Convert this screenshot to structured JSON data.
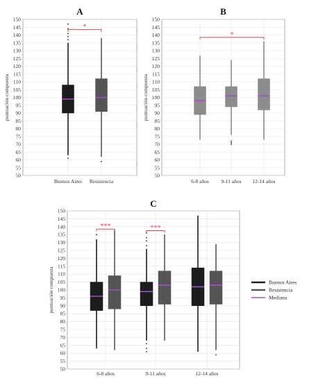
{
  "chart_data": [
    {
      "type": "boxplot",
      "panel_label": "A",
      "ylabel": "puntuación compuesta",
      "ylim": [
        50,
        150
      ],
      "yticks": [
        50,
        55,
        60,
        65,
        70,
        75,
        80,
        85,
        90,
        95,
        100,
        105,
        110,
        115,
        120,
        125,
        130,
        135,
        140,
        145,
        150
      ],
      "grid": true,
      "categories": [
        "Buenos Aires",
        "Resistencia"
      ],
      "boxes": [
        {
          "category": "Buenos Aires",
          "color": "#1c1c1c",
          "q1": 90,
          "median": 99,
          "q3": 108,
          "whisker_low": 63,
          "whisker_high": 135,
          "outliers": [
            61,
            137,
            139,
            141,
            144,
            147
          ]
        },
        {
          "category": "Resistencia",
          "color": "#555555",
          "q1": 91,
          "median": 100,
          "q3": 112,
          "whisker_low": 62,
          "whisker_high": 138,
          "outliers": [
            59
          ]
        }
      ],
      "significance": [
        {
          "from": 0,
          "to": 1,
          "y": 143.5,
          "label": "*"
        }
      ]
    },
    {
      "type": "boxplot",
      "panel_label": "B",
      "ylabel": "puntuación compuesta",
      "ylim": [
        50,
        150
      ],
      "yticks": [
        50,
        55,
        60,
        65,
        70,
        75,
        80,
        85,
        90,
        95,
        100,
        105,
        110,
        115,
        120,
        125,
        130,
        135,
        140,
        145,
        150
      ],
      "grid": true,
      "categories": [
        "6-8 años",
        "9-11 años",
        "12-14 años"
      ],
      "boxes": [
        {
          "category": "6-8 años",
          "color": "#8c8c8c",
          "q1": 89,
          "median": 98,
          "q3": 107,
          "whisker_low": 73,
          "whisker_high": 127,
          "outliers": []
        },
        {
          "category": "9-11 años",
          "color": "#8c8c8c",
          "q1": 94,
          "median": 101,
          "q3": 107,
          "whisker_low": 76,
          "whisker_high": 124,
          "outliers": [
            70,
            71,
            72
          ]
        },
        {
          "category": "12-14 años",
          "color": "#8c8c8c",
          "q1": 92,
          "median": 101,
          "q3": 112,
          "whisker_low": 73,
          "whisker_high": 136,
          "outliers": []
        }
      ],
      "significance": [
        {
          "from": 0,
          "to": 2,
          "y": 138.5,
          "label": "*"
        }
      ]
    },
    {
      "type": "boxplot",
      "panel_label": "C",
      "ylabel": "puntuación compuesta",
      "ylim": [
        50,
        150
      ],
      "yticks": [
        50,
        55,
        60,
        65,
        70,
        75,
        80,
        85,
        90,
        95,
        100,
        105,
        110,
        115,
        120,
        125,
        130,
        135,
        140,
        145,
        150
      ],
      "grid": true,
      "categories": [
        "6-8 años",
        "9-11 años",
        "12-14 años"
      ],
      "series": [
        {
          "name": "Buenos Aires",
          "color": "#1c1c1c",
          "boxes": [
            {
              "q1": 87,
              "median": 96,
              "q3": 105,
              "whisker_low": 63,
              "whisker_high": 132,
              "outliers": [
                135
              ]
            },
            {
              "q1": 90,
              "median": 99,
              "q3": 105,
              "whisker_low": 68,
              "whisker_high": 126,
              "outliers": [
                61,
                63,
                66,
                128,
                131,
                133,
                136
              ]
            },
            {
              "q1": 90,
              "median": 102,
              "q3": 114,
              "whisker_low": 61,
              "whisker_high": 147,
              "outliers": []
            }
          ]
        },
        {
          "name": "Resistencia",
          "color": "#555555",
          "boxes": [
            {
              "q1": 88,
              "median": 100,
              "q3": 109,
              "whisker_low": 62,
              "whisker_high": 138,
              "outliers": []
            },
            {
              "q1": 91,
              "median": 103,
              "q3": 112,
              "whisker_low": 68,
              "whisker_high": 135,
              "outliers": []
            },
            {
              "q1": 91,
              "median": 103,
              "q3": 112,
              "whisker_low": 62,
              "whisker_high": 129,
              "outliers": [
                59
              ]
            }
          ]
        }
      ],
      "median_color": "#a24bd0",
      "legend": {
        "placement": "right",
        "entries": [
          "Buenos Aires",
          "Resistencia",
          "Mediana"
        ]
      },
      "significance": [
        {
          "category": 0,
          "y": 138.5,
          "label": "***"
        },
        {
          "category": 1,
          "y": 137.5,
          "label": "***"
        }
      ]
    }
  ],
  "colors": {
    "median": "#a24bd0",
    "significance": "#e04545",
    "grid": "#e3e3e3",
    "axis": "#9a9a9a"
  }
}
